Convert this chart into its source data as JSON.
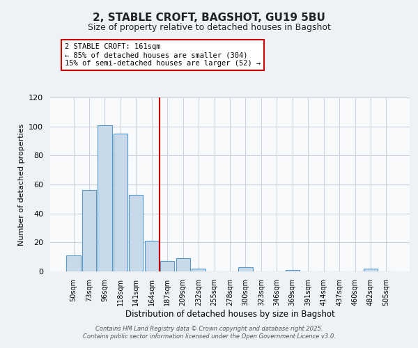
{
  "title": "2, STABLE CROFT, BAGSHOT, GU19 5BU",
  "subtitle": "Size of property relative to detached houses in Bagshot",
  "xlabel": "Distribution of detached houses by size in Bagshot",
  "ylabel": "Number of detached properties",
  "bar_labels": [
    "50sqm",
    "73sqm",
    "96sqm",
    "118sqm",
    "141sqm",
    "164sqm",
    "187sqm",
    "209sqm",
    "232sqm",
    "255sqm",
    "278sqm",
    "300sqm",
    "323sqm",
    "346sqm",
    "369sqm",
    "391sqm",
    "414sqm",
    "437sqm",
    "460sqm",
    "482sqm",
    "505sqm"
  ],
  "bar_values": [
    11,
    56,
    101,
    95,
    53,
    21,
    7,
    9,
    2,
    0,
    0,
    3,
    0,
    0,
    1,
    0,
    0,
    0,
    0,
    2,
    0
  ],
  "bar_color": "#c8daea",
  "bar_edgecolor": "#5599cc",
  "ylim": [
    0,
    120
  ],
  "yticks": [
    0,
    20,
    40,
    60,
    80,
    100,
    120
  ],
  "vline_x": 5.5,
  "vline_color": "#cc0000",
  "annotation_title": "2 STABLE CROFT: 161sqm",
  "annotation_line1": "← 85% of detached houses are smaller (304)",
  "annotation_line2": "15% of semi-detached houses are larger (52) →",
  "annotation_box_edgecolor": "#cc0000",
  "footer_line1": "Contains HM Land Registry data © Crown copyright and database right 2025.",
  "footer_line2": "Contains public sector information licensed under the Open Government Licence v3.0.",
  "background_color": "#eef2f7",
  "plot_background_color": "#f8fafc",
  "grid_color": "#c8d4e0"
}
